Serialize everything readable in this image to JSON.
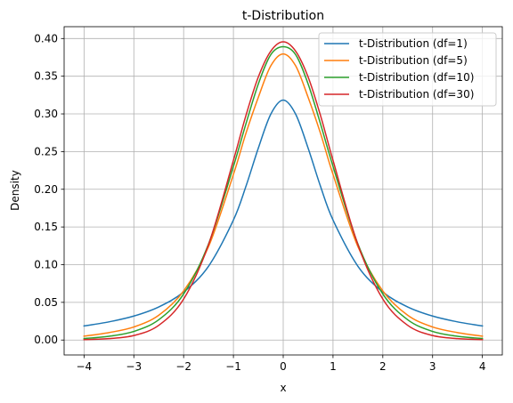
{
  "chart_data": {
    "type": "line",
    "title": "t-Distribution",
    "xlabel": "x",
    "ylabel": "Density",
    "xlim": [
      -4.4,
      4.4
    ],
    "ylim": [
      -0.0198,
      0.4157
    ],
    "x_ticks": [
      -4,
      -3,
      -2,
      -1,
      0,
      1,
      2,
      3,
      4
    ],
    "x_tick_labels": [
      "−4",
      "−3",
      "−2",
      "−1",
      "0",
      "1",
      "2",
      "3",
      "4"
    ],
    "y_ticks": [
      0.0,
      0.05,
      0.1,
      0.15,
      0.2,
      0.25,
      0.3,
      0.35,
      0.4
    ],
    "y_tick_labels": [
      "0.00",
      "0.05",
      "0.10",
      "0.15",
      "0.20",
      "0.25",
      "0.30",
      "0.35",
      "0.40"
    ],
    "grid": true,
    "legend_position": "top-right",
    "x": [
      -4.0,
      -3.5,
      -3.0,
      -2.5,
      -2.0,
      -1.5,
      -1.0,
      -0.75,
      -0.5,
      -0.25,
      0.0,
      0.25,
      0.5,
      0.75,
      1.0,
      1.5,
      2.0,
      2.5,
      3.0,
      3.5,
      4.0
    ],
    "series": [
      {
        "name": "t-Distribution (df=1)",
        "color": "#1f77b4",
        "values": [
          0.0187,
          0.0241,
          0.0318,
          0.0439,
          0.0637,
          0.0979,
          0.1592,
          0.2037,
          0.2546,
          0.2996,
          0.3183,
          0.2996,
          0.2546,
          0.2037,
          0.1592,
          0.0979,
          0.0637,
          0.0439,
          0.0318,
          0.0241,
          0.0187
        ]
      },
      {
        "name": "t-Distribution (df=5)",
        "color": "#ff7f0e",
        "values": [
          0.0051,
          0.0099,
          0.0173,
          0.0329,
          0.0651,
          0.1239,
          0.2197,
          0.274,
          0.322,
          0.3637,
          0.3796,
          0.3637,
          0.322,
          0.274,
          0.2197,
          0.1239,
          0.0651,
          0.0329,
          0.0173,
          0.0099,
          0.0051
        ]
      },
      {
        "name": "t-Distribution (df=10)",
        "color": "#2ca02c",
        "values": [
          0.002,
          0.005,
          0.0114,
          0.0269,
          0.0611,
          0.1274,
          0.2304,
          0.2865,
          0.3397,
          0.3785,
          0.3891,
          0.3785,
          0.3397,
          0.2865,
          0.2304,
          0.1274,
          0.0611,
          0.0269,
          0.0114,
          0.005,
          0.002
        ]
      },
      {
        "name": "t-Distribution (df=30)",
        "color": "#d62728",
        "values": [
          0.0005,
          0.0019,
          0.006,
          0.0195,
          0.0544,
          0.1266,
          0.2384,
          0.2976,
          0.349,
          0.3832,
          0.3956,
          0.3832,
          0.349,
          0.2976,
          0.2384,
          0.1266,
          0.0544,
          0.0195,
          0.006,
          0.0019,
          0.0005
        ]
      }
    ]
  }
}
